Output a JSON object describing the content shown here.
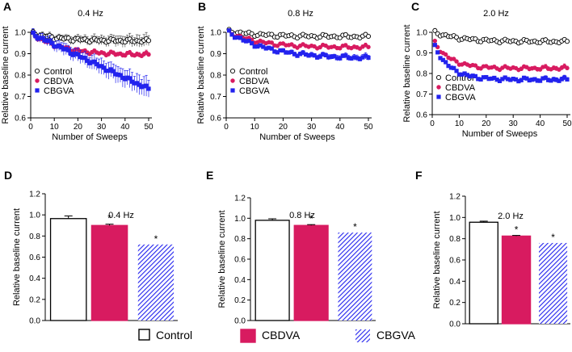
{
  "colors": {
    "control": "#000000",
    "cbdva": "#d81b60",
    "cbgva": "#2222ee"
  },
  "legend": [
    {
      "name": "Control",
      "marker": "circle"
    },
    {
      "name": "CBDVA",
      "marker": "dot"
    },
    {
      "name": "CBGVA",
      "marker": "square"
    }
  ],
  "chart_data": [
    {
      "panel": "A",
      "type": "scatter",
      "title": "0.4 Hz",
      "xlabel": "Number of Sweeps",
      "ylabel": "Relative baseline current",
      "xlim": [
        0,
        50
      ],
      "ylim": [
        0.6,
        1.0
      ],
      "xticks": [
        0,
        10,
        20,
        30,
        40,
        50
      ],
      "yticks": [
        0.6,
        0.7,
        0.8,
        0.9,
        1.0
      ],
      "series": [
        {
          "name": "Control",
          "start": 0.995,
          "end": 0.96,
          "k": 0.5,
          "err": 0.03
        },
        {
          "name": "CBDVA",
          "start": 0.99,
          "end": 0.895,
          "k": 0.6,
          "err": 0.012
        },
        {
          "name": "CBGVA",
          "start": 0.99,
          "end": 0.735,
          "k": 0.9,
          "err": 0.05
        }
      ]
    },
    {
      "panel": "B",
      "type": "scatter",
      "title": "0.8 Hz",
      "xlabel": "Number of Sweeps",
      "ylabel": "Relative baseline current",
      "xlim": [
        0,
        50
      ],
      "ylim": [
        0.6,
        1.0
      ],
      "xticks": [
        0,
        10,
        20,
        30,
        40,
        50
      ],
      "yticks": [
        0.6,
        0.7,
        0.8,
        0.9,
        1.0
      ],
      "series": [
        {
          "name": "Control",
          "start": 1.005,
          "end": 0.98,
          "k": 0.5,
          "err": 0.01
        },
        {
          "name": "CBDVA",
          "start": 1.0,
          "end": 0.93,
          "k": 0.5,
          "err": 0.01
        },
        {
          "name": "CBGVA",
          "start": 1.0,
          "end": 0.88,
          "k": 0.7,
          "err": 0.015
        }
      ]
    },
    {
      "panel": "C",
      "type": "scatter",
      "title": "2.0 Hz",
      "xlabel": "Number of Sweeps",
      "ylabel": "Relative baseline current",
      "xlim": [
        0,
        50
      ],
      "ylim": [
        0.6,
        1.0
      ],
      "xticks": [
        0,
        10,
        20,
        30,
        40,
        50
      ],
      "yticks": [
        0.6,
        0.7,
        0.8,
        0.9,
        1.0
      ],
      "series": [
        {
          "name": "Control",
          "start": 1.0,
          "end": 0.955,
          "k": 0.4,
          "err": 0.008
        },
        {
          "name": "CBDVA",
          "start": 0.95,
          "end": 0.825,
          "k": 0.2,
          "err": 0.012
        },
        {
          "name": "CBGVA",
          "start": 0.93,
          "end": 0.77,
          "k": 0.2,
          "err": 0.012
        }
      ]
    },
    {
      "panel": "D",
      "type": "bar",
      "title": "0.4 Hz",
      "ylabel": "Relative baseline current",
      "ylim": [
        0,
        1.2
      ],
      "yticks": [
        0.0,
        0.2,
        0.4,
        0.6,
        0.8,
        1.0,
        1.2
      ],
      "categories": [
        "Control",
        "CBDVA",
        "CBGVA"
      ],
      "values": [
        0.965,
        0.9,
        0.72
      ],
      "errors": [
        0.025,
        0.012,
        0.0
      ],
      "significance": [
        "",
        "*",
        "*"
      ]
    },
    {
      "panel": "E",
      "type": "bar",
      "title": "0.8 Hz",
      "ylabel": "Relative baseline current",
      "ylim": [
        0,
        1.2
      ],
      "yticks": [
        0.0,
        0.2,
        0.4,
        0.6,
        0.8,
        1.0,
        1.2
      ],
      "categories": [
        "Control",
        "CBDVA",
        "CBGVA"
      ],
      "values": [
        0.98,
        0.93,
        0.86
      ],
      "errors": [
        0.015,
        0.008,
        0.0
      ],
      "significance": [
        "",
        "*",
        "*"
      ]
    },
    {
      "panel": "F",
      "type": "bar",
      "title": "2.0 Hz",
      "ylabel": "Relative baseline current",
      "ylim": [
        0,
        1.2
      ],
      "yticks": [
        0.0,
        0.2,
        0.4,
        0.6,
        0.8,
        1.0,
        1.2
      ],
      "categories": [
        "Control",
        "CBDVA",
        "CBGVA"
      ],
      "values": [
        0.955,
        0.825,
        0.76
      ],
      "errors": [
        0.01,
        0.006,
        0.0
      ],
      "significance": [
        "",
        "*",
        "*"
      ]
    }
  ]
}
